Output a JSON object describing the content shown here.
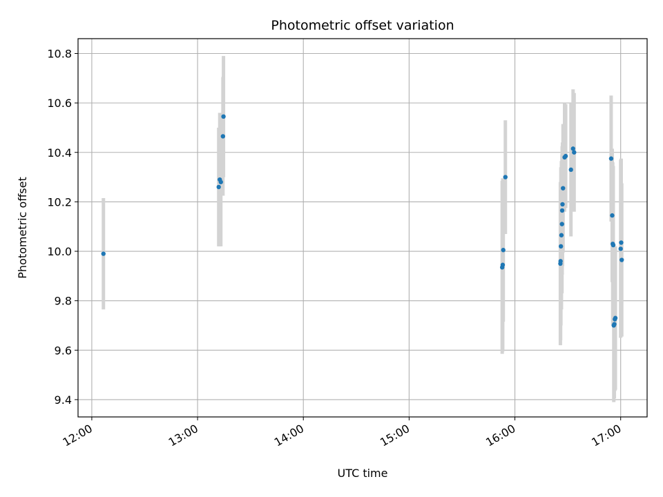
{
  "chart_data": {
    "type": "scatter",
    "title": "Photometric offset variation",
    "xlabel": "UTC time",
    "ylabel": "Photometric offset",
    "x_unit": "UTC hour",
    "xlim": [
      11.87,
      17.25
    ],
    "ylim": [
      9.33,
      10.86
    ],
    "xticks": [
      {
        "value": 12,
        "label": "12:00"
      },
      {
        "value": 13,
        "label": "13:00"
      },
      {
        "value": 14,
        "label": "14:00"
      },
      {
        "value": 15,
        "label": "15:00"
      },
      {
        "value": 16,
        "label": "16:00"
      },
      {
        "value": 17,
        "label": "17:00"
      }
    ],
    "yticks": [
      {
        "value": 9.4,
        "label": "9.4"
      },
      {
        "value": 9.6,
        "label": "9.6"
      },
      {
        "value": 9.8,
        "label": "9.8"
      },
      {
        "value": 10.0,
        "label": "10.0"
      },
      {
        "value": 10.2,
        "label": "10.2"
      },
      {
        "value": 10.4,
        "label": "10.4"
      },
      {
        "value": 10.6,
        "label": "10.6"
      },
      {
        "value": 10.8,
        "label": "10.8"
      }
    ],
    "grid": true,
    "legend": "none",
    "colors": {
      "points": "#1f77b4",
      "errorbars": "#d3d3d3"
    },
    "points": [
      {
        "x": 12.11,
        "y": 9.99,
        "err": 0.225
      },
      {
        "x": 13.2,
        "y": 10.26,
        "err": 0.24
      },
      {
        "x": 13.21,
        "y": 10.29,
        "err": 0.27
      },
      {
        "x": 13.22,
        "y": 10.28,
        "err": 0.26
      },
      {
        "x": 13.24,
        "y": 10.465,
        "err": 0.24
      },
      {
        "x": 13.245,
        "y": 10.545,
        "err": 0.245
      },
      {
        "x": 15.88,
        "y": 9.935,
        "err": 0.35
      },
      {
        "x": 15.885,
        "y": 9.945,
        "err": 0.35
      },
      {
        "x": 15.89,
        "y": 10.005,
        "err": 0.29
      },
      {
        "x": 15.91,
        "y": 10.3,
        "err": 0.23
      },
      {
        "x": 16.43,
        "y": 9.95,
        "err": 0.33
      },
      {
        "x": 16.432,
        "y": 9.96,
        "err": 0.32
      },
      {
        "x": 16.435,
        "y": 10.02,
        "err": 0.32
      },
      {
        "x": 16.44,
        "y": 10.065,
        "err": 0.3
      },
      {
        "x": 16.445,
        "y": 10.11,
        "err": 0.28
      },
      {
        "x": 16.447,
        "y": 10.165,
        "err": 0.26
      },
      {
        "x": 16.45,
        "y": 10.19,
        "err": 0.25
      },
      {
        "x": 16.455,
        "y": 10.255,
        "err": 0.26
      },
      {
        "x": 16.47,
        "y": 10.38,
        "err": 0.22
      },
      {
        "x": 16.48,
        "y": 10.385,
        "err": 0.21
      },
      {
        "x": 16.53,
        "y": 10.33,
        "err": 0.27
      },
      {
        "x": 16.55,
        "y": 10.415,
        "err": 0.24
      },
      {
        "x": 16.56,
        "y": 10.4,
        "err": 0.24
      },
      {
        "x": 16.91,
        "y": 10.375,
        "err": 0.255
      },
      {
        "x": 16.92,
        "y": 10.145,
        "err": 0.27
      },
      {
        "x": 16.925,
        "y": 10.03,
        "err": 0.33
      },
      {
        "x": 16.93,
        "y": 10.025,
        "err": 0.32
      },
      {
        "x": 16.935,
        "y": 9.7,
        "err": 0.31
      },
      {
        "x": 16.94,
        "y": 9.705,
        "err": 0.3
      },
      {
        "x": 16.945,
        "y": 9.725,
        "err": 0.29
      },
      {
        "x": 16.95,
        "y": 9.73,
        "err": 0.29
      },
      {
        "x": 17.0,
        "y": 10.01,
        "err": 0.36
      },
      {
        "x": 17.005,
        "y": 10.035,
        "err": 0.34
      },
      {
        "x": 17.01,
        "y": 9.965,
        "err": 0.31
      }
    ]
  }
}
